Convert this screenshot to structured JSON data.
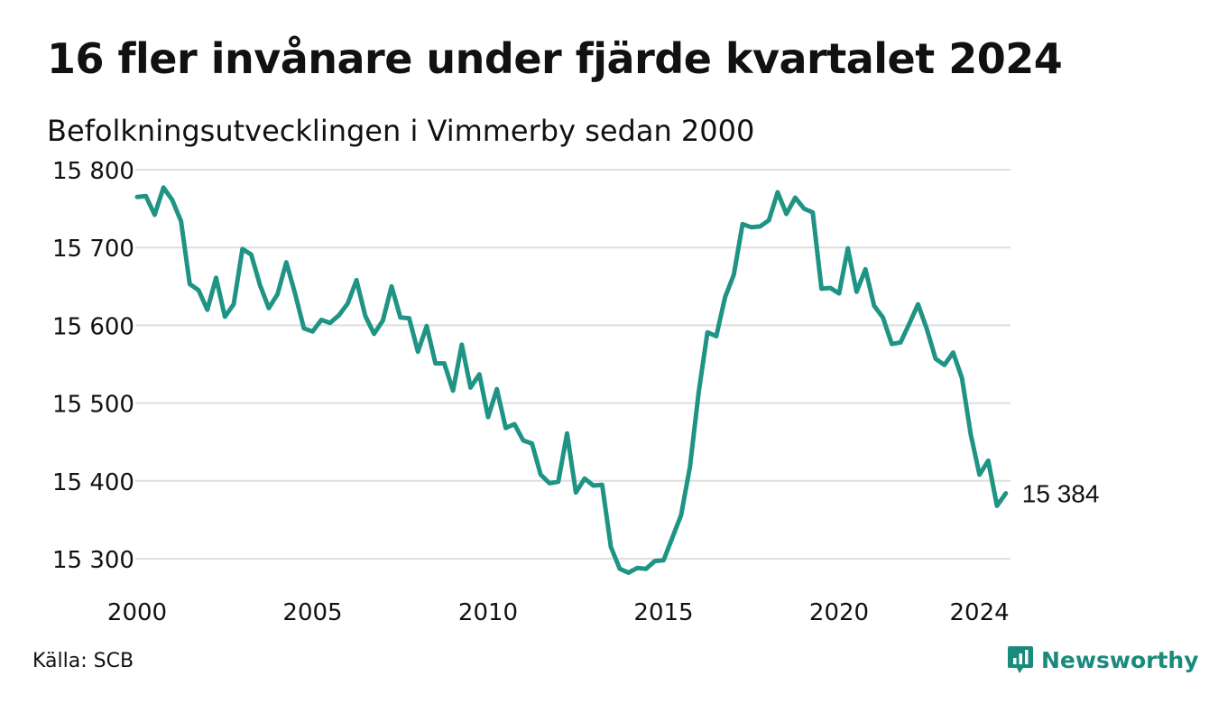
{
  "title": "16 fler invånare under fjärde kvartalet 2024",
  "subtitle": "Befolkningsutvecklingen i Vimmerby sedan 2000",
  "source": "Källa: SCB",
  "brand": {
    "name": "Newsworthy",
    "icon": "newsworthy-logo-icon",
    "color": "#1a8a7c"
  },
  "chart_data": {
    "type": "line",
    "title": "16 fler invånare under fjärde kvartalet 2024",
    "xlabel": "",
    "ylabel": "",
    "line_color": "#1f9484",
    "grid": true,
    "ylim": [
      15280,
      15800
    ],
    "xlim": [
      2000,
      2025
    ],
    "yticks": [
      15800,
      15700,
      15600,
      15500,
      15400,
      15300
    ],
    "ytick_labels": [
      "15 800",
      "15 700",
      "15 600",
      "15 500",
      "15 400",
      "15 300"
    ],
    "xticks": [
      2000,
      2005,
      2010,
      2015,
      2020,
      2024
    ],
    "xtick_labels": [
      "2000",
      "2005",
      "2010",
      "2015",
      "2020",
      "2024"
    ],
    "end_label": "15 384",
    "series": [
      {
        "values": [
          [
            2000.0,
            15765
          ],
          [
            2000.25,
            15766
          ],
          [
            2000.5,
            15742
          ],
          [
            2000.75,
            15777
          ],
          [
            2001.0,
            15761
          ],
          [
            2001.25,
            15734
          ],
          [
            2001.5,
            15653
          ],
          [
            2001.75,
            15645
          ],
          [
            2002.0,
            15620
          ],
          [
            2002.25,
            15661
          ],
          [
            2002.5,
            15611
          ],
          [
            2002.75,
            15627
          ],
          [
            2003.0,
            15698
          ],
          [
            2003.25,
            15691
          ],
          [
            2003.5,
            15652
          ],
          [
            2003.75,
            15622
          ],
          [
            2004.0,
            15640
          ],
          [
            2004.25,
            15681
          ],
          [
            2004.5,
            15641
          ],
          [
            2004.75,
            15596
          ],
          [
            2005.0,
            15592
          ],
          [
            2005.25,
            15607
          ],
          [
            2005.5,
            15603
          ],
          [
            2005.75,
            15613
          ],
          [
            2006.0,
            15628
          ],
          [
            2006.25,
            15658
          ],
          [
            2006.5,
            15612
          ],
          [
            2006.75,
            15589
          ],
          [
            2007.0,
            15606
          ],
          [
            2007.25,
            15650
          ],
          [
            2007.5,
            15610
          ],
          [
            2007.75,
            15609
          ],
          [
            2008.0,
            15566
          ],
          [
            2008.25,
            15599
          ],
          [
            2008.5,
            15551
          ],
          [
            2008.75,
            15551
          ],
          [
            2009.0,
            15516
          ],
          [
            2009.25,
            15575
          ],
          [
            2009.5,
            15520
          ],
          [
            2009.75,
            15537
          ],
          [
            2010.0,
            15482
          ],
          [
            2010.25,
            15518
          ],
          [
            2010.5,
            15468
          ],
          [
            2010.75,
            15473
          ],
          [
            2011.0,
            15452
          ],
          [
            2011.25,
            15448
          ],
          [
            2011.5,
            15408
          ],
          [
            2011.75,
            15397
          ],
          [
            2012.0,
            15399
          ],
          [
            2012.25,
            15461
          ],
          [
            2012.5,
            15385
          ],
          [
            2012.75,
            15403
          ],
          [
            2013.0,
            15394
          ],
          [
            2013.25,
            15395
          ],
          [
            2013.5,
            15315
          ],
          [
            2013.75,
            15287
          ],
          [
            2014.0,
            15282
          ],
          [
            2014.25,
            15288
          ],
          [
            2014.5,
            15287
          ],
          [
            2014.75,
            15297
          ],
          [
            2015.0,
            15298
          ],
          [
            2015.25,
            15327
          ],
          [
            2015.5,
            15356
          ],
          [
            2015.75,
            15418
          ],
          [
            2016.0,
            15514
          ],
          [
            2016.25,
            15591
          ],
          [
            2016.5,
            15586
          ],
          [
            2016.75,
            15636
          ],
          [
            2017.0,
            15665
          ],
          [
            2017.25,
            15730
          ],
          [
            2017.5,
            15726
          ],
          [
            2017.75,
            15727
          ],
          [
            2018.0,
            15735
          ],
          [
            2018.25,
            15771
          ],
          [
            2018.5,
            15743
          ],
          [
            2018.75,
            15764
          ],
          [
            2019.0,
            15750
          ],
          [
            2019.25,
            15745
          ],
          [
            2019.5,
            15647
          ],
          [
            2019.75,
            15648
          ],
          [
            2020.0,
            15641
          ],
          [
            2020.25,
            15699
          ],
          [
            2020.5,
            15643
          ],
          [
            2020.75,
            15672
          ],
          [
            2021.0,
            15625
          ],
          [
            2021.25,
            15610
          ],
          [
            2021.5,
            15576
          ],
          [
            2021.75,
            15578
          ],
          [
            2022.0,
            15602
          ],
          [
            2022.25,
            15627
          ],
          [
            2022.5,
            15595
          ],
          [
            2022.75,
            15557
          ],
          [
            2023.0,
            15549
          ],
          [
            2023.25,
            15565
          ],
          [
            2023.5,
            15532
          ],
          [
            2023.75,
            15460
          ],
          [
            2024.0,
            15408
          ],
          [
            2024.25,
            15426
          ],
          [
            2024.5,
            15368
          ],
          [
            2024.75,
            15384
          ]
        ]
      }
    ]
  }
}
